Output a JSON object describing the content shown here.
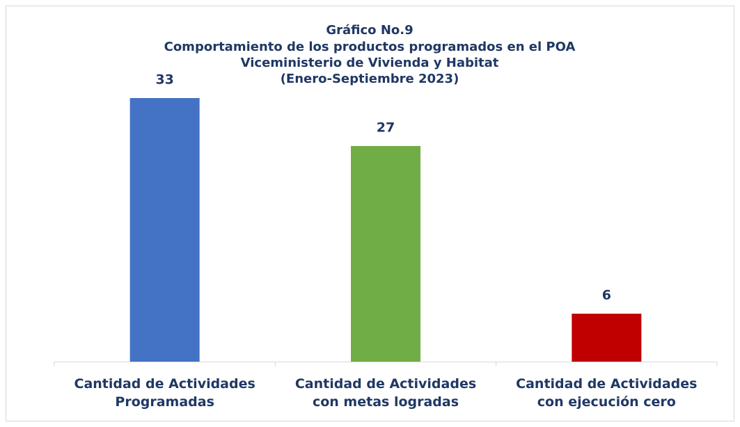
{
  "chart_data": {
    "type": "bar",
    "title": "Gráfico No.9",
    "subtitle": [
      "Comportamiento de los productos programados en el POA",
      "Viceministerio de Vivienda y Habitat",
      "(Enero-Septiembre 2023)"
    ],
    "categories": [
      "Cantidad de Actividades Programadas",
      "Cantidad de Actividades con metas logradas",
      "Cantidad de Actividades con ejecución cero"
    ],
    "values": [
      33,
      27,
      6
    ],
    "colors": [
      "#4472c4",
      "#70ad47",
      "#c00000"
    ]
  }
}
